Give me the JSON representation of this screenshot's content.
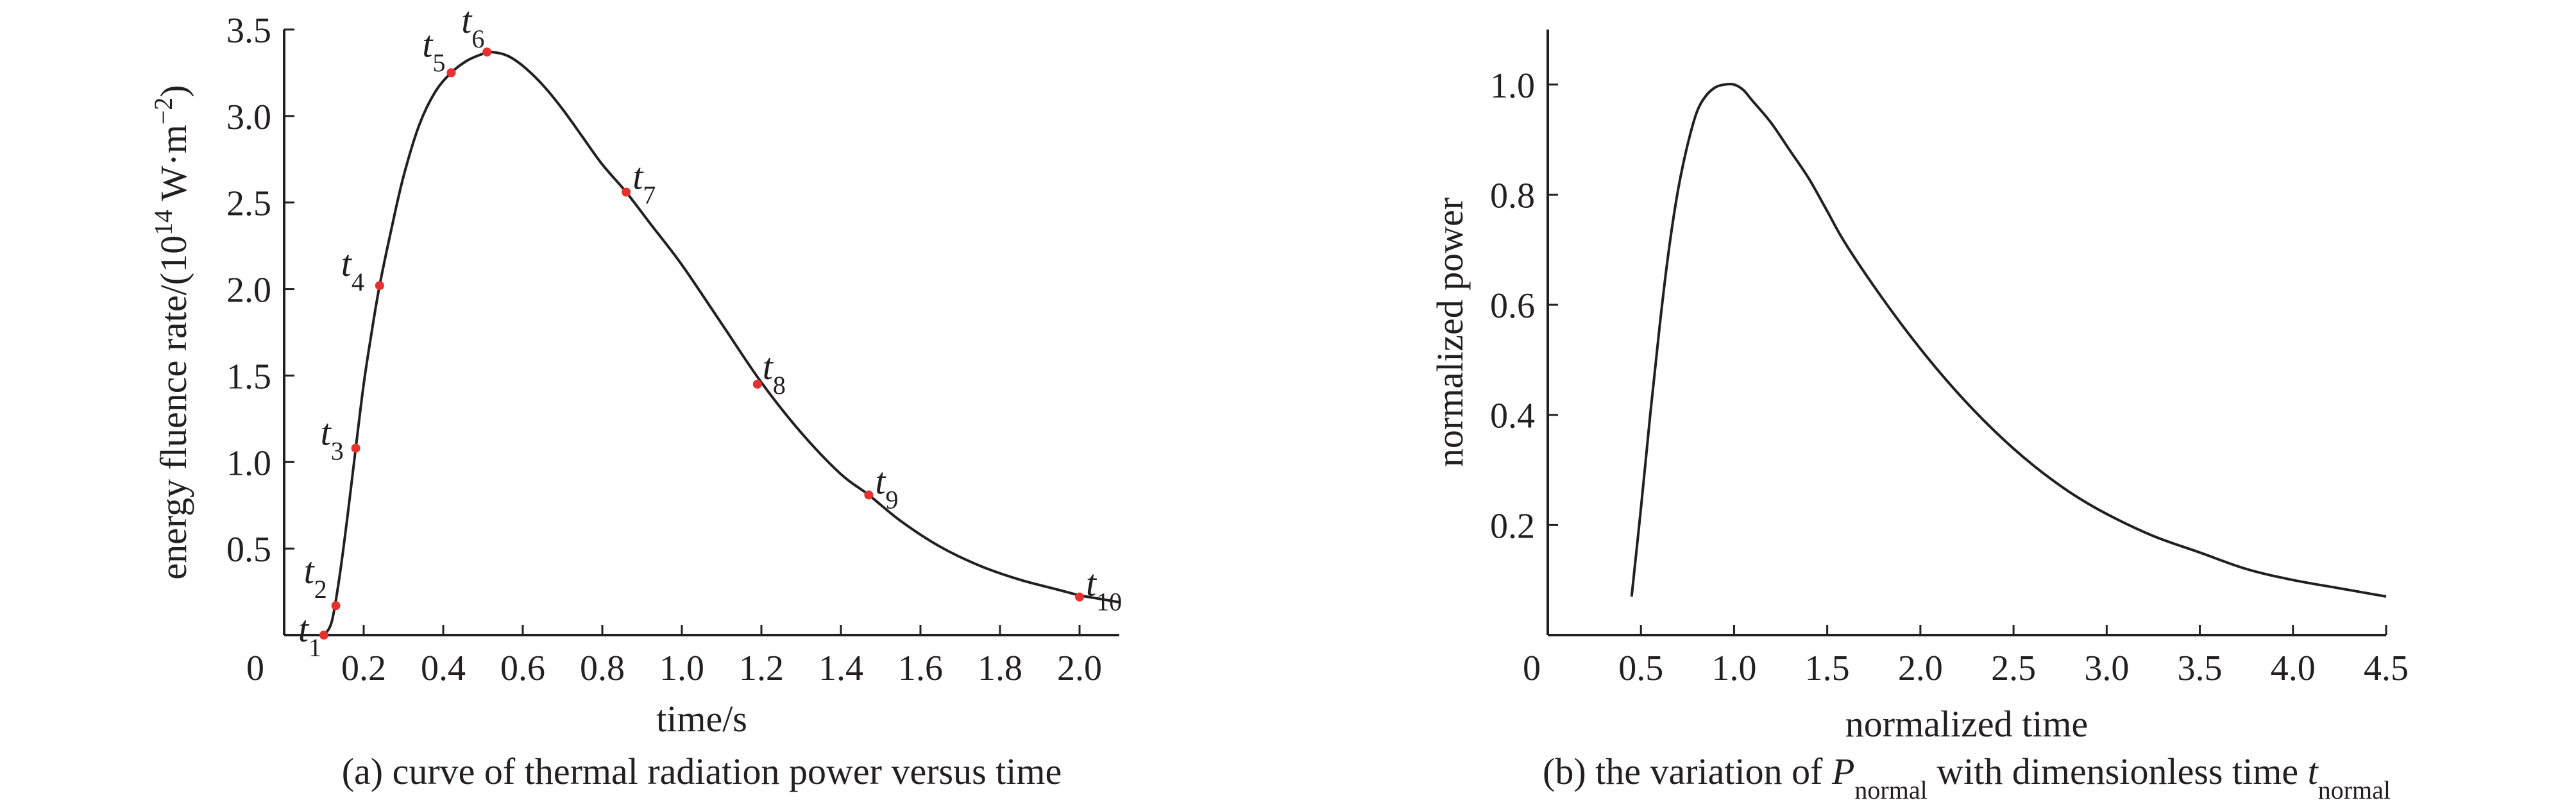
{
  "chart_data": [
    {
      "type": "line",
      "title": "",
      "caption": "(a) curve of thermal radiation power versus time",
      "xlabel": "time/s",
      "ylabel": {
        "text_before": "energy fluence rate/(10",
        "sup1": "14",
        "text_middle": " W·m",
        "sup2": "−2",
        "text_after": ")"
      },
      "xlim": [
        0,
        2.1
      ],
      "ylim": [
        0,
        3.5
      ],
      "origin_label": "0",
      "x_ticks": [
        0.2,
        0.4,
        0.6,
        0.8,
        1.0,
        1.2,
        1.4,
        1.6,
        1.8,
        2.0
      ],
      "x_tick_labels": [
        "0.2",
        "0.4",
        "0.6",
        "0.8",
        "1.0",
        "1.2",
        "1.4",
        "1.6",
        "1.8",
        "2.0"
      ],
      "y_ticks": [
        0.5,
        1.0,
        1.5,
        2.0,
        2.5,
        3.0,
        3.5
      ],
      "y_tick_labels": [
        "0.5",
        "1.0",
        "1.5",
        "2.0",
        "2.5",
        "3.0",
        "3.5"
      ],
      "grid": false,
      "line_color": "#231f20",
      "marker_color": "#e8312f",
      "curve": {
        "x": [
          0.1,
          0.12,
          0.14,
          0.16,
          0.18,
          0.2,
          0.22,
          0.24,
          0.27,
          0.3,
          0.34,
          0.38,
          0.42,
          0.46,
          0.5,
          0.52,
          0.56,
          0.6,
          0.65,
          0.7,
          0.75,
          0.8,
          0.86,
          0.92,
          1.0,
          1.1,
          1.2,
          1.3,
          1.4,
          1.47,
          1.55,
          1.65,
          1.75,
          1.85,
          1.95,
          2.0,
          2.05,
          2.1
        ],
        "y": [
          0.0,
          0.08,
          0.35,
          0.7,
          1.08,
          1.45,
          1.75,
          2.02,
          2.35,
          2.65,
          2.95,
          3.14,
          3.25,
          3.32,
          3.36,
          3.37,
          3.35,
          3.29,
          3.18,
          3.04,
          2.88,
          2.72,
          2.56,
          2.38,
          2.14,
          1.8,
          1.46,
          1.17,
          0.93,
          0.81,
          0.66,
          0.51,
          0.4,
          0.32,
          0.26,
          0.23,
          0.21,
          0.19
        ]
      },
      "points": [
        {
          "base": "t",
          "sub": "1",
          "x": 0.1,
          "y": 0.0
        },
        {
          "base": "t",
          "sub": "2",
          "x": 0.13,
          "y": 0.17
        },
        {
          "base": "t",
          "sub": "3",
          "x": 0.18,
          "y": 1.08
        },
        {
          "base": "t",
          "sub": "4",
          "x": 0.24,
          "y": 2.02
        },
        {
          "base": "t",
          "sub": "5",
          "x": 0.42,
          "y": 3.25
        },
        {
          "base": "t",
          "sub": "6",
          "x": 0.51,
          "y": 3.37
        },
        {
          "base": "t",
          "sub": "7",
          "x": 0.86,
          "y": 2.56
        },
        {
          "base": "t",
          "sub": "8",
          "x": 1.19,
          "y": 1.45
        },
        {
          "base": "t",
          "sub": "9",
          "x": 1.47,
          "y": 0.81
        },
        {
          "base": "t",
          "sub": "10",
          "x": 2.0,
          "y": 0.22
        }
      ]
    },
    {
      "type": "line",
      "title": "",
      "caption": {
        "prefix": "(b) the variation of ",
        "p_base": "P",
        "p_sub": "normal",
        "middle": " with dimensionless time ",
        "t_base": "t",
        "t_sub": "normal"
      },
      "xlabel": "normalized time",
      "ylabel": "normalized power",
      "xlim": [
        0,
        4.5
      ],
      "ylim": [
        0,
        1.1
      ],
      "origin_label": "0",
      "x_ticks": [
        0.5,
        1.0,
        1.5,
        2.0,
        2.5,
        3.0,
        3.5,
        4.0,
        4.5
      ],
      "x_tick_labels": [
        "0.5",
        "1.0",
        "1.5",
        "2.0",
        "2.5",
        "3.0",
        "3.5",
        "4.0",
        "4.5"
      ],
      "y_ticks": [
        0.2,
        0.4,
        0.6,
        0.8,
        1.0
      ],
      "y_tick_labels": [
        "0.2",
        "0.4",
        "0.6",
        "0.8",
        "1.0"
      ],
      "grid": false,
      "line_color": "#231f20",
      "curve": {
        "x": [
          0.45,
          0.5,
          0.55,
          0.6,
          0.65,
          0.7,
          0.75,
          0.8,
          0.85,
          0.9,
          0.95,
          1.0,
          1.05,
          1.1,
          1.2,
          1.3,
          1.4,
          1.5,
          1.6,
          1.8,
          2.0,
          2.2,
          2.4,
          2.6,
          2.8,
          3.0,
          3.25,
          3.5,
          3.75,
          4.0,
          4.25,
          4.5
        ],
        "y": [
          0.07,
          0.23,
          0.4,
          0.56,
          0.7,
          0.81,
          0.89,
          0.95,
          0.98,
          0.995,
          1.0,
          1.0,
          0.99,
          0.97,
          0.93,
          0.88,
          0.83,
          0.77,
          0.71,
          0.61,
          0.52,
          0.44,
          0.37,
          0.31,
          0.26,
          0.22,
          0.18,
          0.15,
          0.12,
          0.1,
          0.085,
          0.07
        ]
      }
    }
  ]
}
